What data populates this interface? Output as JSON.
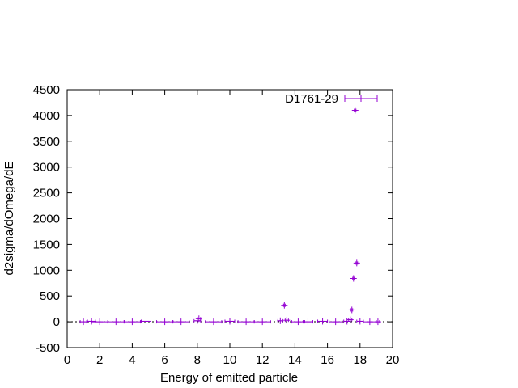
{
  "chart_data": {
    "type": "scatter",
    "xlabel": "Energy of emitted particle",
    "ylabel": "d2sigma/dOmega/dE",
    "xlim": [
      0,
      20
    ],
    "ylim": [
      -500,
      4500
    ],
    "xticks": [
      0,
      2,
      4,
      6,
      8,
      10,
      12,
      14,
      16,
      18,
      20
    ],
    "yticks": [
      -500,
      0,
      500,
      1000,
      1500,
      2000,
      2500,
      3000,
      3500,
      4000,
      4500
    ],
    "legend_position": "top-right",
    "error_bars": "horizontal",
    "series": [
      {
        "name": "D1761-29",
        "color": "#9400d3",
        "points": [
          {
            "x": 1.0,
            "y": 0,
            "xerr": 0.2
          },
          {
            "x": 1.5,
            "y": 10,
            "xerr": 0.25
          },
          {
            "x": 2.0,
            "y": 0,
            "xerr": 0.5
          },
          {
            "x": 3.0,
            "y": 0,
            "xerr": 0.5
          },
          {
            "x": 4.0,
            "y": 0,
            "xerr": 0.5
          },
          {
            "x": 4.85,
            "y": 10,
            "xerr": 0.3
          },
          {
            "x": 6.0,
            "y": 0,
            "xerr": 0.5
          },
          {
            "x": 7.0,
            "y": 0,
            "xerr": 0.5
          },
          {
            "x": 8.0,
            "y": 20,
            "xerr": 0.2
          },
          {
            "x": 8.1,
            "y": 60,
            "xerr": 0.1
          },
          {
            "x": 9.0,
            "y": 0,
            "xerr": 0.5
          },
          {
            "x": 10.0,
            "y": 10,
            "xerr": 0.3
          },
          {
            "x": 11.0,
            "y": 0,
            "xerr": 0.5
          },
          {
            "x": 12.0,
            "y": 0,
            "xerr": 0.5
          },
          {
            "x": 13.1,
            "y": 20,
            "xerr": 0.15
          },
          {
            "x": 13.35,
            "y": 320,
            "xerr": 0.05
          },
          {
            "x": 13.5,
            "y": 30,
            "xerr": 0.1
          },
          {
            "x": 14.2,
            "y": 0,
            "xerr": 0.4
          },
          {
            "x": 14.8,
            "y": 0,
            "xerr": 0.3
          },
          {
            "x": 15.7,
            "y": 10,
            "xerr": 0.3
          },
          {
            "x": 16.5,
            "y": 0,
            "xerr": 0.4
          },
          {
            "x": 17.2,
            "y": 10,
            "xerr": 0.2
          },
          {
            "x": 17.4,
            "y": 40,
            "xerr": 0.1
          },
          {
            "x": 17.5,
            "y": 230,
            "xerr": 0.05
          },
          {
            "x": 17.6,
            "y": 840,
            "xerr": 0.05
          },
          {
            "x": 17.7,
            "y": 4100,
            "xerr": 0.05
          },
          {
            "x": 17.8,
            "y": 1140,
            "xerr": 0.05
          },
          {
            "x": 18.0,
            "y": 10,
            "xerr": 0.2
          },
          {
            "x": 18.6,
            "y": 0,
            "xerr": 0.4
          },
          {
            "x": 19.1,
            "y": 0,
            "xerr": 0.1
          }
        ]
      }
    ]
  }
}
